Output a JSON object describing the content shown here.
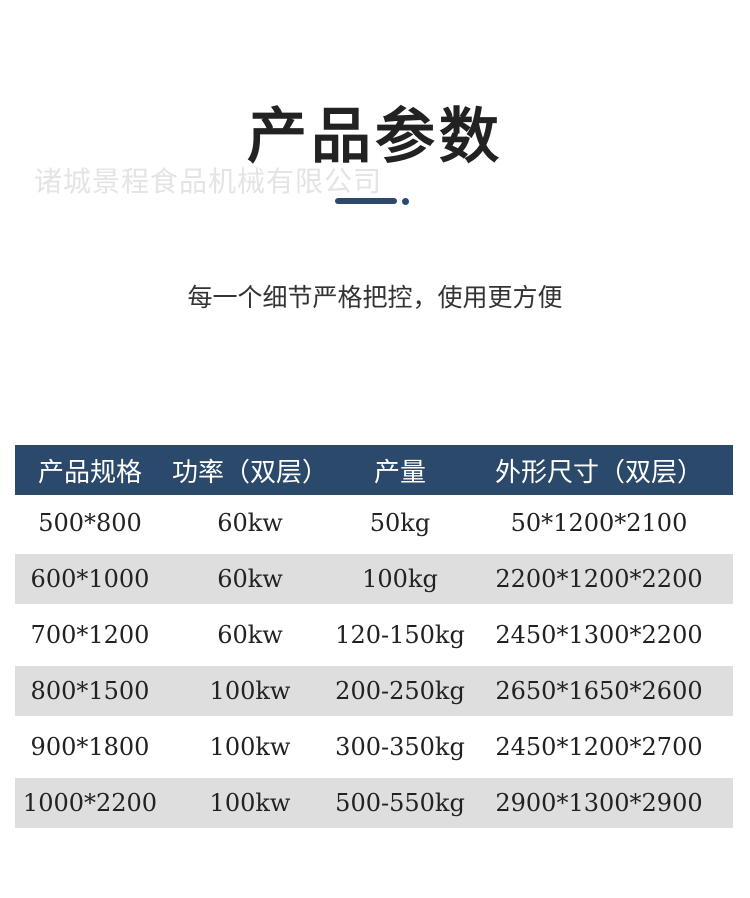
{
  "header": {
    "title": "产品参数",
    "watermark": "诸城景程食品机械有限公司",
    "subtitle": "每一个细节严格把控，使用更方便"
  },
  "table": {
    "columns": [
      "产品规格",
      "功率（双层）",
      "产量",
      "外形尺寸（双层）"
    ],
    "rows": [
      [
        "500*800",
        "60kw",
        "50kg",
        "50*1200*2100"
      ],
      [
        "600*1000",
        "60kw",
        "100kg",
        "2200*1200*2200"
      ],
      [
        "700*1200",
        "60kw",
        "120-150kg",
        "2450*1300*2200"
      ],
      [
        "800*1500",
        "100kw",
        "200-250kg",
        "2650*1650*2600"
      ],
      [
        "900*1800",
        "100kw",
        "300-350kg",
        "2450*1200*2700"
      ],
      [
        "1000*2200",
        "100kw",
        "500-550kg",
        "2900*1300*2900"
      ]
    ]
  }
}
